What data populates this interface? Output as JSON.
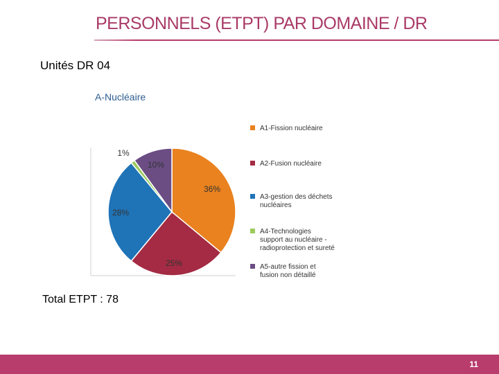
{
  "slide": {
    "title": "PERSONNELS (ETPT) PAR DOMAINE / DR",
    "subtitle": "Unités DR 04",
    "total": "Total ETPT : 78",
    "page_number": "11"
  },
  "chart_data": {
    "type": "pie",
    "title": "A-Nucléaire",
    "slices": [
      {
        "label": "A1-Fission nucléaire",
        "value": 36,
        "data_label": "36%",
        "color": "#e9821f"
      },
      {
        "label": "A2-Fusion nucléaire",
        "value": 25,
        "data_label": "25%",
        "color": "#a42b43"
      },
      {
        "label": "A3-gestion des déchets nucléaires",
        "value": 28,
        "data_label": "28%",
        "color": "#1f73b7"
      },
      {
        "label": "A4-Technologies support au nucléaire - radioprotection et sureté",
        "value": 1,
        "data_label": "1%",
        "color": "#9ccb5c"
      },
      {
        "label": "A5-autre fission et fusion non détaillé",
        "value": 10,
        "data_label": "10%",
        "color": "#6b4d84"
      }
    ],
    "legend_position": "right",
    "colors": {
      "title": "#2e5c8e",
      "text": "#333333"
    }
  }
}
